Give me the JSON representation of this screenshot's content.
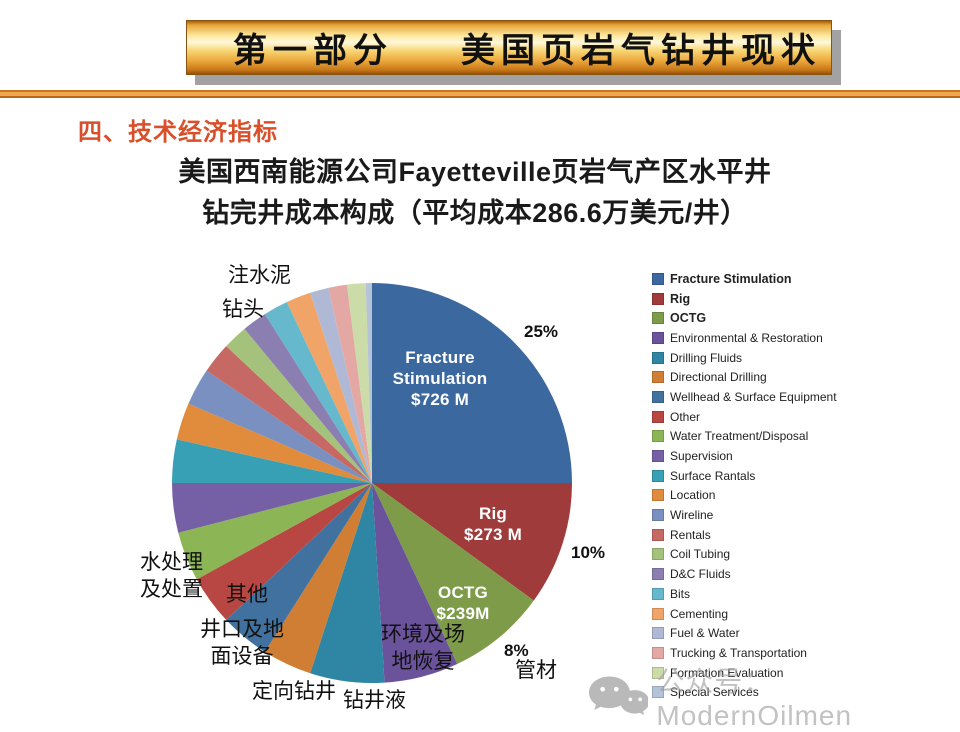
{
  "banner": {
    "part": "第一部分",
    "title": "美国页岩气钻井现状"
  },
  "section_heading": "四、技术经济指标",
  "subtitle": {
    "line1": "美国西南能源公司Fayetteville页岩气产区水平井",
    "line2": "钻完井成本构成（平均成本286.6万美元/井）"
  },
  "chart_data": {
    "type": "pie",
    "title": "美国西南能源公司Fayetteville页岩气产区水平井钻完井成本构成（平均成本286.6万美元/井）",
    "start_angle": "top",
    "direction": "clockwise",
    "legend_position": "right",
    "series": [
      {
        "name": "Fracture Stimulation",
        "percent": 25,
        "amount": "$726 M",
        "color": "#3C68A0",
        "inside_label": "Fracture\nStimulation\n$726 M",
        "percent_label": "25%",
        "legend_bold": true
      },
      {
        "name": "Rig",
        "percent": 10,
        "amount": "$273 M",
        "color": "#A03B3B",
        "inside_label": "Rig\n$273 M",
        "percent_label": "10%",
        "legend_bold": true
      },
      {
        "name": "OCTG",
        "percent": 8,
        "amount": "$239M",
        "color": "#7E9B49",
        "inside_label": "OCTG\n$239M",
        "percent_label": "8%",
        "legend_bold": true
      },
      {
        "name": "Environmental & Restoration",
        "percent": 6,
        "color": "#6A539B"
      },
      {
        "name": "Drilling Fluids",
        "percent": 6,
        "color": "#2E86A4"
      },
      {
        "name": "Directional Drilling",
        "percent": 4,
        "color": "#D07E33"
      },
      {
        "name": "Wellhead & Surface Equipment",
        "percent": 4,
        "color": "#41729F"
      },
      {
        "name": "Other",
        "percent": 4,
        "color": "#B84743"
      },
      {
        "name": "Water Treatment/Disposal",
        "percent": 4,
        "color": "#8CB556"
      },
      {
        "name": "Supervision",
        "percent": 4,
        "color": "#7560A5"
      },
      {
        "name": "Surface Rantals",
        "percent": 3.5,
        "color": "#38A0B4"
      },
      {
        "name": "Location",
        "percent": 3,
        "color": "#E08C3C"
      },
      {
        "name": "Wireline",
        "percent": 3,
        "color": "#7A90C0"
      },
      {
        "name": "Rentals",
        "percent": 2.5,
        "color": "#C66863"
      },
      {
        "name": "Coil Tubing",
        "percent": 2,
        "color": "#A4C27C"
      },
      {
        "name": "D&C Fluids",
        "percent": 2,
        "color": "#8A7FB0"
      },
      {
        "name": "Bits",
        "percent": 2,
        "color": "#66B8CC"
      },
      {
        "name": "Cementing",
        "percent": 2,
        "color": "#F0A468"
      },
      {
        "name": "Fuel & Water",
        "percent": 1.5,
        "color": "#AFB9D6"
      },
      {
        "name": "Trucking & Transportation",
        "percent": 1.5,
        "color": "#E4A8A4"
      },
      {
        "name": "Formation Evaluation",
        "percent": 1.5,
        "color": "#CBDCA8"
      },
      {
        "name": "Special Services",
        "percent": 0.5,
        "color": "#B4C4D8"
      }
    ],
    "callouts_zh": {
      "cementing": "注水泥",
      "bits": "钻头",
      "water_treatment": "水处理\n及处置",
      "other": "其他",
      "wellhead": "井口及地\n面设备",
      "directional": "定向钻井",
      "drilling_fluids": "钻井液",
      "environmental": "环境及场\n地恢复",
      "octg_pipe": "管材"
    }
  },
  "watermark": {
    "icon": "wechat-icon",
    "text": "公众号：ModernOilmen"
  }
}
